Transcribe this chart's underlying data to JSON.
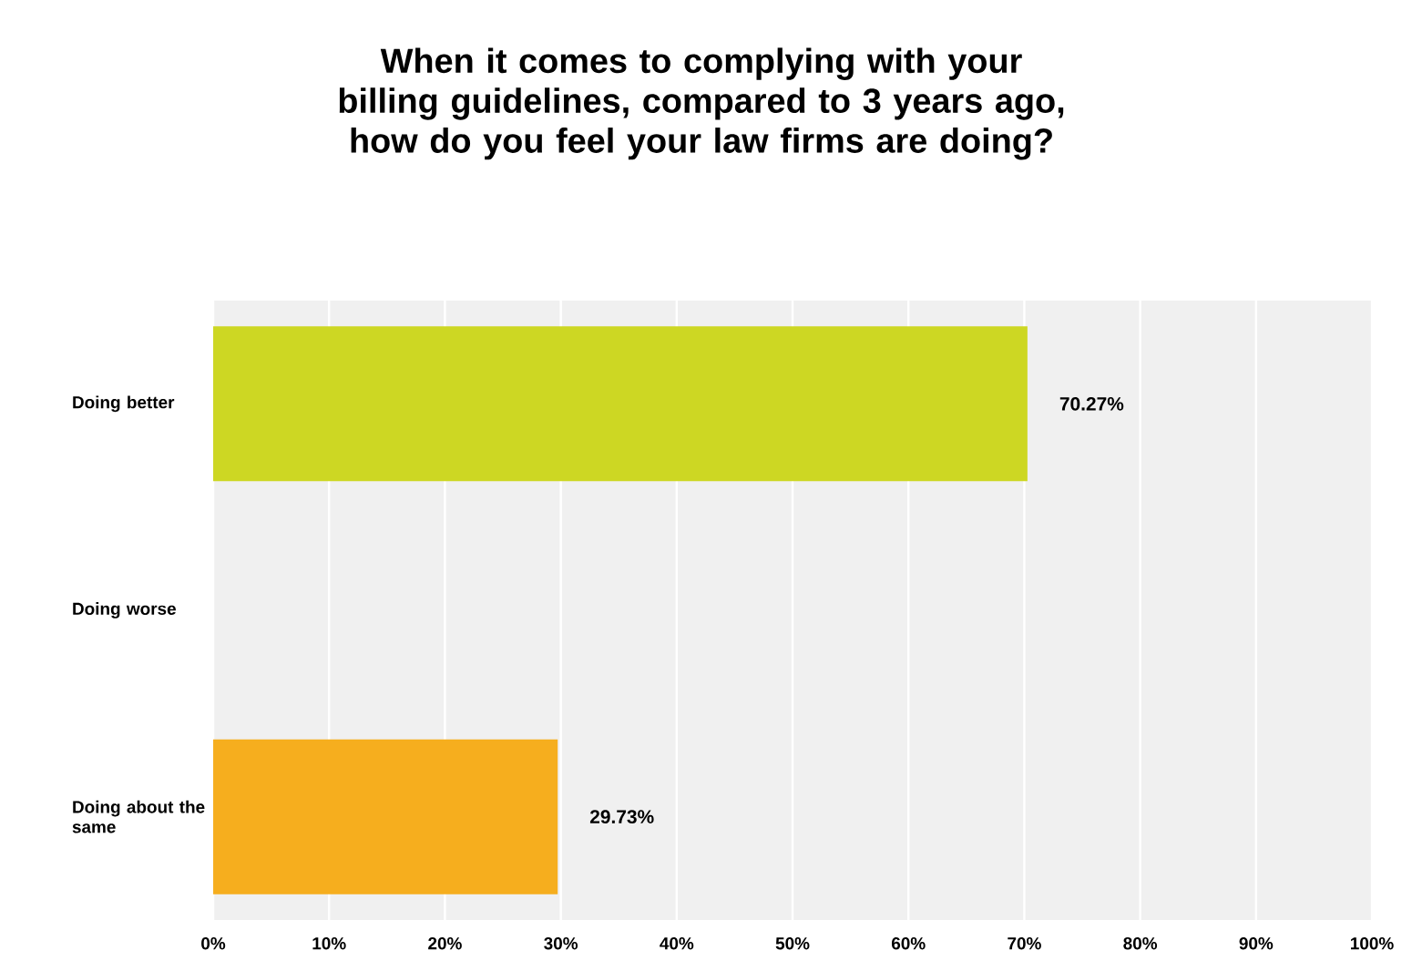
{
  "chart_data": {
    "type": "bar",
    "orientation": "horizontal",
    "title": "When it comes to complying with your billing guidelines, compared to 3 years ago, how do you feel your law firms are doing?",
    "categories": [
      "Doing better",
      "Doing worse",
      "Doing about the same"
    ],
    "values": [
      70.27,
      0,
      29.73
    ],
    "colors": [
      "#cdd723",
      "#cccccc",
      "#f6ae1e"
    ],
    "value_labels": [
      "70.27%",
      null,
      "29.73%"
    ],
    "xlim": [
      0,
      100
    ],
    "xticks": [
      {
        "value": 0,
        "label": "0%"
      },
      {
        "value": 10,
        "label": "10%"
      },
      {
        "value": 20,
        "label": "20%"
      },
      {
        "value": 30,
        "label": "30%"
      },
      {
        "value": 40,
        "label": "40%"
      },
      {
        "value": 50,
        "label": "50%"
      },
      {
        "value": 60,
        "label": "60%"
      },
      {
        "value": 70,
        "label": "70%"
      },
      {
        "value": 80,
        "label": "80%"
      },
      {
        "value": 90,
        "label": "90%"
      },
      {
        "value": 100,
        "label": "100%"
      }
    ],
    "grid": "x"
  }
}
